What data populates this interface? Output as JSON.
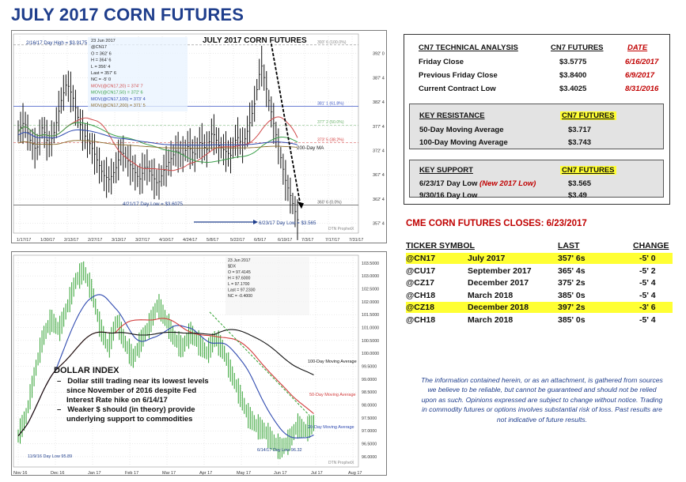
{
  "page_title": "JULY 2017 CORN FUTURES",
  "technical_analysis": {
    "headers": [
      "CN7 TECHNICAL ANALYSIS",
      "CN7 FUTURES",
      "DATE"
    ],
    "rows": [
      {
        "label": "Friday Close",
        "value": "$3.5775",
        "date": "6/16/2017"
      },
      {
        "label": "Previous Friday Close",
        "value": "$3.8400",
        "date": "6/9/2017"
      },
      {
        "label": "Current Contract Low",
        "value": "$3.4025",
        "date": "8/31/2016"
      }
    ],
    "resistance": {
      "header_label": "KEY RESISTANCE",
      "header_value": "CN7 FUTURES",
      "rows": [
        {
          "label": "50-Day Moving Average",
          "value": "$3.717"
        },
        {
          "label": "100-Day Moving Average",
          "value": "$3.743"
        }
      ]
    },
    "support": {
      "header_label": "KEY SUPPORT",
      "header_value": "CN7 FUTURES",
      "rows": [
        {
          "label": "6/23/17 Day Low",
          "note": "(New 2017 Low)",
          "value": "$3.565"
        },
        {
          "label": "9/30/16 Day Low",
          "note": "",
          "value": "$3.49"
        }
      ]
    }
  },
  "closes": {
    "title": "CME CORN FUTURES CLOSES:  6/23/2017",
    "headers": [
      "TICKER SYMBOL",
      "LAST",
      "CHANGE"
    ],
    "rows": [
      {
        "ticker": "@CN17",
        "month": "July 2017",
        "last": "357' 6s",
        "change": "-5' 0",
        "highlight": true
      },
      {
        "ticker": "@CU17",
        "month": "September 2017",
        "last": "365' 4s",
        "change": "-5' 2",
        "highlight": false
      },
      {
        "ticker": "@CZ17",
        "month": "December 2017",
        "last": "375' 2s",
        "change": "-5' 4",
        "highlight": false
      },
      {
        "ticker": "@CH18",
        "month": "March 2018",
        "last": "385' 0s",
        "change": "-5' 4",
        "highlight": false
      },
      {
        "ticker": "@CZ18",
        "month": "December 2018",
        "last": "397' 2s",
        "change": "-3' 6",
        "highlight": true
      },
      {
        "ticker": "@CH18",
        "month": "March 2018",
        "last": "385' 0s",
        "change": "-5' 4",
        "highlight": false
      }
    ]
  },
  "disclaimer": "The information contained herein, or as an attachment, is gathered from sources we believe to be reliable, but cannot be guaranteed and should not be relied upon as such. Opinions expressed are subject to change without notice. Trading in commodity futures or options involves substantial risk of loss. Past results are not indicative of future results.",
  "dollar_note": {
    "title": "DOLLAR INDEX",
    "items": [
      "Dollar still trading near its lowest levels since November of 2016 despite Fed Interest Rate hike on 6/14/17",
      "Weaker $ should (in theory) provide underlying support to commodities"
    ]
  },
  "colors": {
    "title_blue": "#1f3e8c",
    "red": "#c00000",
    "highlight": "#ffff33",
    "panel_grey": "#e3e3e3"
  },
  "chart_data": [
    {
      "type": "line",
      "title": "JULY 2017 CORN FUTURES",
      "x_labels": [
        "1/17/17",
        "1/30/17",
        "2/13/17",
        "2/27/17",
        "3/13/17",
        "3/27/17",
        "4/10/17",
        "4/24/17",
        "5/8/17",
        "5/22/17",
        "6/5/17",
        "6/19/17",
        "7/3/17",
        "7/17/17",
        "7/31/17"
      ],
      "y_ticks": [
        "392' 0",
        "387' 4",
        "382' 4",
        "377' 4",
        "372' 4",
        "367' 4",
        "362' 4",
        "357' 4"
      ],
      "ylim": [
        355,
        396
      ],
      "levels": [
        {
          "label": "393' 6 (100.0%)",
          "value": 393.75
        },
        {
          "label": "381' 1 (61.8%)",
          "value": 381.13
        },
        {
          "label": "377' 2 (50.0%)",
          "value": 377.25
        },
        {
          "label": "373' 5 (38.2%)",
          "value": 373.63
        },
        {
          "label": "360' 6 (0.0%)",
          "value": 360.75
        }
      ],
      "price_path": [
        376,
        378,
        374,
        372,
        377,
        373,
        376,
        382,
        386,
        383,
        378,
        375,
        373,
        370,
        367,
        366,
        368,
        372,
        370,
        368,
        366,
        369,
        367,
        365,
        368,
        370,
        372,
        371,
        373,
        371,
        374,
        372,
        376,
        373,
        372,
        371,
        375,
        373,
        377,
        382,
        390,
        384,
        378,
        372,
        366,
        362,
        357.75
      ],
      "annotations": [
        "2/16/17 Day High = $3.9175",
        "4/21/17 Day Low = $3.6075",
        "6/23/17 Day Low = $3.565",
        "200-Day MA"
      ],
      "legend": [
        "23 Jun 2017",
        "@CN17",
        "O = 362' 6",
        "H = 364' 6",
        "L = 356' 4",
        "Last = 357' 6",
        "NC = -5' 0",
        "MOV(@CN17,20) = 374' 7",
        "MOV(@CN17,50) = 372' 6",
        "MOV(@CN17,100) = 373' 4",
        "MOV(@CN17,200) = 371' 5"
      ],
      "watermark": "DTN ProphetX"
    },
    {
      "type": "line",
      "title": "",
      "x_labels": [
        "Nov 16",
        "Dec 16",
        "Jan 17",
        "Feb 17",
        "Mar 17",
        "Apr 17",
        "May 17",
        "Jun 17",
        "Jul 17",
        "Aug 17"
      ],
      "y_ticks": [
        "103.5000",
        "103.0000",
        "102.5000",
        "102.0000",
        "101.5000",
        "101.0000",
        "100.5000",
        "100.0000",
        "99.5000",
        "99.0000",
        "98.5000",
        "98.0000",
        "97.5000",
        "97.0000",
        "96.5000",
        "96.0000"
      ],
      "ylim": [
        95.6,
        103.8
      ],
      "price_path": [
        96.8,
        97.6,
        99.2,
        100.6,
        101.3,
        100.9,
        101.8,
        102.8,
        103.2,
        102.4,
        101.0,
        100.2,
        101.3,
        100.4,
        99.8,
        100.5,
        101.1,
        101.9,
        101.3,
        100.6,
        100.2,
        100.8,
        100.4,
        100.0,
        100.6,
        100.1,
        99.2,
        98.4,
        97.6,
        97.2,
        97.0,
        96.6,
        96.3,
        96.6,
        97.2,
        97.0,
        97.3
      ],
      "annotations": [
        "DOLLAR INDEX",
        "100-Day Moving Average",
        "50-Day Moving Average",
        "20-Day Moving Average",
        "11/9/16 Day Low 95.89",
        "6/14/17 Day Low 96.32"
      ],
      "legend": [
        "23 Jun 2017",
        "$DX",
        "O = 97.4145",
        "H = 97.6000",
        "L = 97.1700",
        "Last = 97.2330",
        "NC = -0.4000"
      ],
      "watermark": "DTN ProphetX"
    }
  ]
}
